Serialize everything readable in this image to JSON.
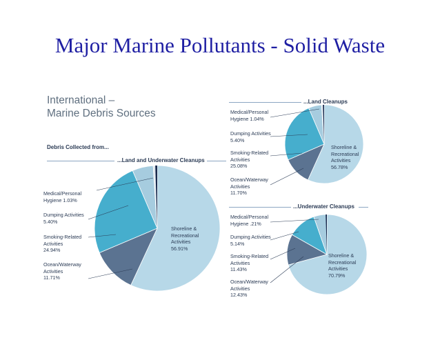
{
  "slide": {
    "title": "Major Marine Pollutants - Solid Waste"
  },
  "figure": {
    "heading_line1": "International –",
    "heading_line2": "Marine Debris Sources",
    "subheading": "Debris Collected from..."
  },
  "colors": {
    "shoreline": "#b7d8e8",
    "ocean": "#5b7391",
    "smoking": "#46aecd",
    "dumping": "#a6ccdf",
    "medical": "#dfe7ee",
    "sliver": "#1a2b4e",
    "line": "#2b3b55"
  },
  "chart_data": [
    {
      "type": "pie",
      "title": "...Land and Underwater Cleanups",
      "categories": [
        "Shoreline & Recreational Activities",
        "Ocean/Waterway Activities",
        "Smoking-Related Activities",
        "Dumping Activities",
        "Medical/Personal Hygiene"
      ],
      "values": [
        56.91,
        11.71,
        24.94,
        5.4,
        1.03
      ],
      "labels": [
        {
          "line1": "Shoreline &",
          "line2": "Recreational",
          "line3": "Activities",
          "value": "56.91%"
        },
        {
          "line1": "Ocean/Waterway",
          "line2": "Activities",
          "value": "11.71%"
        },
        {
          "line1": "Smoking-Related",
          "line2": "Activities",
          "value": "24.94%"
        },
        {
          "line1": "Dumping Activities",
          "value": "5.40%"
        },
        {
          "line1": "Medical/Personal",
          "line2": "Hygiene",
          "value": "1.03%"
        }
      ]
    },
    {
      "type": "pie",
      "title": "...Land Cleanups",
      "categories": [
        "Shoreline & Recreational Activities",
        "Ocean/Waterway Activities",
        "Smoking-Related Activities",
        "Dumping Activities",
        "Medical/Personal Hygiene"
      ],
      "values": [
        56.78,
        11.7,
        25.08,
        5.4,
        1.04
      ],
      "labels": [
        {
          "line1": "Shoreline &",
          "line2": "Recreational",
          "line3": "Activities",
          "value": "56.78%"
        },
        {
          "line1": "Ocean/Waterway",
          "line2": "Activities",
          "value": "11.70%"
        },
        {
          "line1": "Smoking-Related",
          "line2": "Activities",
          "value": "25.08%"
        },
        {
          "line1": "Dumping Activities",
          "value": "5.40%"
        },
        {
          "line1": "Medical/Personal",
          "line2": "Hygiene",
          "value": "1.04%"
        }
      ]
    },
    {
      "type": "pie",
      "title": "...Underwater Cleanups",
      "categories": [
        "Shoreline & Recreational Activities",
        "Ocean/Waterway Activities",
        "Smoking-Related Activities",
        "Dumping Activities",
        "Medical/Personal Hygiene"
      ],
      "values": [
        70.79,
        12.43,
        11.43,
        5.14,
        0.21
      ],
      "labels": [
        {
          "line1": "Shoreline &",
          "line2": "Recreational",
          "line3": "Activities",
          "value": "70.79%"
        },
        {
          "line1": "Ocean/Waterway",
          "line2": "Activities",
          "value": "12.43%"
        },
        {
          "line1": "Smoking-Related",
          "line2": "Activities",
          "value": "11.43%"
        },
        {
          "line1": "Dumping Activities",
          "value": "5.14%"
        },
        {
          "line1": "Medical/Personal",
          "line2": "Hygiene",
          "value": ".21%"
        }
      ]
    }
  ]
}
